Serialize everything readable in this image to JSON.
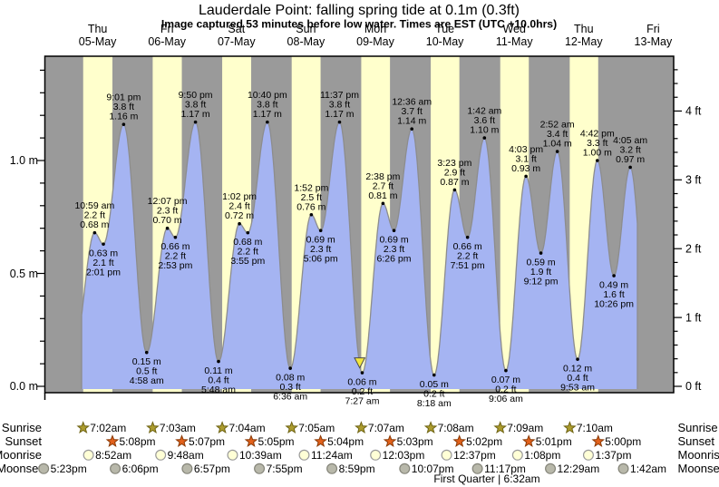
{
  "header": {
    "title": "Lauderdale Point: falling  spring tide at 0.1m (0.3ft)",
    "subtitle": "Image captured 53 minutes before low water. Times are EST (UTC +10.0hrs)"
  },
  "day_axis": {
    "days": [
      {
        "weekday": "Thu",
        "date": "05-May"
      },
      {
        "weekday": "Fri",
        "date": "06-May"
      },
      {
        "weekday": "Sat",
        "date": "07-May"
      },
      {
        "weekday": "Sun",
        "date": "08-May"
      },
      {
        "weekday": "Mon",
        "date": "09-May"
      },
      {
        "weekday": "Tue",
        "date": "10-May"
      },
      {
        "weekday": "Wed",
        "date": "11-May"
      },
      {
        "weekday": "Thu",
        "date": "12-May"
      },
      {
        "weekday": "Fri",
        "date": "13-May"
      }
    ]
  },
  "y_axis_left": {
    "unit": "m",
    "ticks": [
      {
        "label": "1.0 m",
        "value": 1.0
      },
      {
        "label": "0.5 m",
        "value": 0.5
      },
      {
        "label": "0.0 m",
        "value": 0.0
      }
    ]
  },
  "y_axis_right": {
    "unit": "ft",
    "ticks": [
      {
        "label": "4 ft",
        "value": 4
      },
      {
        "label": "3 ft",
        "value": 3
      },
      {
        "label": "2 ft",
        "value": 2
      },
      {
        "label": "1 ft",
        "value": 1
      },
      {
        "label": "0 ft",
        "value": 0
      }
    ]
  },
  "chart_data": {
    "type": "area",
    "series_name": "tide height",
    "y_range_m": [
      -0.03,
      1.46
    ],
    "tide_events": [
      {
        "day_index": 0,
        "time": "10:59 am",
        "kind": "high",
        "ft": "2.2 ft",
        "m": "0.68 m"
      },
      {
        "day_index": 0,
        "time": "2:01 pm",
        "kind": "low",
        "ft": "2.1 ft",
        "m": "0.63 m"
      },
      {
        "day_index": 0,
        "time": "9:01 pm",
        "kind": "high",
        "ft": "3.8 ft",
        "m": "1.16 m"
      },
      {
        "day_index": 1,
        "time": "4:58 am",
        "kind": "low",
        "ft": "0.5 ft",
        "m": "0.15 m"
      },
      {
        "day_index": 1,
        "time": "12:07 pm",
        "kind": "high",
        "ft": "2.3 ft",
        "m": "0.70 m"
      },
      {
        "day_index": 1,
        "time": "2:53 pm",
        "kind": "low",
        "ft": "2.2 ft",
        "m": "0.66 m"
      },
      {
        "day_index": 1,
        "time": "9:50 pm",
        "kind": "high",
        "ft": "3.8 ft",
        "m": "1.17 m"
      },
      {
        "day_index": 2,
        "time": "5:48 am",
        "kind": "low",
        "ft": "0.4 ft",
        "m": "0.11 m"
      },
      {
        "day_index": 2,
        "time": "1:02 pm",
        "kind": "high",
        "ft": "2.4 ft",
        "m": "0.72 m"
      },
      {
        "day_index": 2,
        "time": "3:55 pm",
        "kind": "low",
        "ft": "2.2 ft",
        "m": "0.68 m"
      },
      {
        "day_index": 2,
        "time": "10:40 pm",
        "kind": "high",
        "ft": "3.8 ft",
        "m": "1.17 m"
      },
      {
        "day_index": 3,
        "time": "6:36 am",
        "kind": "low",
        "ft": "0.3 ft",
        "m": "0.08 m"
      },
      {
        "day_index": 3,
        "time": "1:52 pm",
        "kind": "high",
        "ft": "2.5 ft",
        "m": "0.76 m"
      },
      {
        "day_index": 3,
        "time": "5:06 pm",
        "kind": "low",
        "ft": "2.3 ft",
        "m": "0.69 m"
      },
      {
        "day_index": 3,
        "time": "11:37 pm",
        "kind": "high",
        "ft": "3.8 ft",
        "m": "1.17 m"
      },
      {
        "day_index": 4,
        "time": "7:27 am",
        "kind": "low",
        "ft": "0.2 ft",
        "m": "0.06 m"
      },
      {
        "day_index": 4,
        "time": "2:38 pm",
        "kind": "high",
        "ft": "2.7 ft",
        "m": "0.81 m"
      },
      {
        "day_index": 4,
        "time": "6:26 pm",
        "kind": "low",
        "ft": "2.3 ft",
        "m": "0.69 m"
      },
      {
        "day_index": 5,
        "time": "12:36 am",
        "kind": "high",
        "ft": "3.7 ft",
        "m": "1.14 m"
      },
      {
        "day_index": 5,
        "time": "8:18 am",
        "kind": "low",
        "ft": "0.2 ft",
        "m": "0.05 m"
      },
      {
        "day_index": 5,
        "time": "3:23 pm",
        "kind": "high",
        "ft": "2.9 ft",
        "m": "0.87 m"
      },
      {
        "day_index": 5,
        "time": "7:51 pm",
        "kind": "low",
        "ft": "2.2 ft",
        "m": "0.66 m"
      },
      {
        "day_index": 6,
        "time": "1:42 am",
        "kind": "high",
        "ft": "3.6 ft",
        "m": "1.10 m"
      },
      {
        "day_index": 6,
        "time": "9:06 am",
        "kind": "low",
        "ft": "0.2 ft",
        "m": "0.07 m"
      },
      {
        "day_index": 6,
        "time": "4:03 pm",
        "kind": "high",
        "ft": "3.1 ft",
        "m": "0.93 m"
      },
      {
        "day_index": 6,
        "time": "9:12 pm",
        "kind": "low",
        "ft": "1.9 ft",
        "m": "0.59 m"
      },
      {
        "day_index": 7,
        "time": "2:52 am",
        "kind": "high",
        "ft": "3.4 ft",
        "m": "1.04 m"
      },
      {
        "day_index": 7,
        "time": "9:53 am",
        "kind": "low",
        "ft": "0.4 ft",
        "m": "0.12 m"
      },
      {
        "day_index": 7,
        "time": "4:42 pm",
        "kind": "high",
        "ft": "3.3 ft",
        "m": "1.00 m"
      },
      {
        "day_index": 7,
        "time": "10:26 pm",
        "kind": "low",
        "ft": "1.6 ft",
        "m": "0.49 m"
      },
      {
        "day_index": 8,
        "time": "4:05 am",
        "kind": "high",
        "ft": "3.2 ft",
        "m": "0.97 m"
      }
    ],
    "current_marker": {
      "day_index": 4,
      "time": "6:34 am"
    }
  },
  "astronomy": {
    "left_labels": [
      "Sunrise",
      "Sunset",
      "Moonrise",
      "Moonset"
    ],
    "right_labels": [
      "Sunrise",
      "Sunset",
      "Moonrise",
      "Moonset"
    ],
    "sunrise": [
      {
        "day_index": 0,
        "time": "7:02am"
      },
      {
        "day_index": 1,
        "time": "7:03am"
      },
      {
        "day_index": 2,
        "time": "7:04am"
      },
      {
        "day_index": 3,
        "time": "7:05am"
      },
      {
        "day_index": 4,
        "time": "7:07am"
      },
      {
        "day_index": 5,
        "time": "7:08am"
      },
      {
        "day_index": 6,
        "time": "7:09am"
      },
      {
        "day_index": 7,
        "time": "7:10am"
      }
    ],
    "sunset": [
      {
        "day_index": 0,
        "time": "5:08pm"
      },
      {
        "day_index": 1,
        "time": "5:07pm"
      },
      {
        "day_index": 2,
        "time": "5:05pm"
      },
      {
        "day_index": 3,
        "time": "5:04pm"
      },
      {
        "day_index": 4,
        "time": "5:03pm"
      },
      {
        "day_index": 5,
        "time": "5:02pm"
      },
      {
        "day_index": 6,
        "time": "5:01pm"
      },
      {
        "day_index": 7,
        "time": "5:00pm"
      }
    ],
    "moonrise": [
      {
        "day_index": 0,
        "time": "8:52am"
      },
      {
        "day_index": 1,
        "time": "9:48am"
      },
      {
        "day_index": 2,
        "time": "10:39am"
      },
      {
        "day_index": 3,
        "time": "11:24am"
      },
      {
        "day_index": 4,
        "time": "12:03pm"
      },
      {
        "day_index": 5,
        "time": "12:37pm"
      },
      {
        "day_index": 6,
        "time": "1:08pm"
      },
      {
        "day_index": 7,
        "time": "1:37pm"
      }
    ],
    "moonset": [
      {
        "day_index": -1,
        "time": "5:23pm"
      },
      {
        "day_index": 0,
        "time": "6:06pm"
      },
      {
        "day_index": 1,
        "time": "6:57pm"
      },
      {
        "day_index": 2,
        "time": "7:55pm"
      },
      {
        "day_index": 3,
        "time": "8:59pm"
      },
      {
        "day_index": 4,
        "time": "10:07pm"
      },
      {
        "day_index": 5,
        "time": "11:17pm"
      },
      {
        "day_index": 7,
        "time": "12:29am"
      },
      {
        "day_index": 8,
        "time": "1:42am"
      }
    ],
    "moon_phase": "First Quarter | 6:32am"
  },
  "colors": {
    "day_band": "#ffffcc",
    "night_band": "#9a9a9a",
    "tide_fill": "#a5b4f2",
    "tide_stroke": "#8d8d8d",
    "day_label_red": "#f92a2a",
    "marker_yellow": "#f2e63e",
    "sunrise_star": "#ac9c2e",
    "sunrise_star_stroke": "#6f6414",
    "sunset_star": "#e2611b",
    "sunset_star_stroke": "#8a3a06",
    "moonrise_circle": "#ffffd6",
    "moonrise_circle_stroke": "#9a9a9a",
    "moonset_circle": "#b8b8aa",
    "moonset_circle_stroke": "#85857a"
  }
}
